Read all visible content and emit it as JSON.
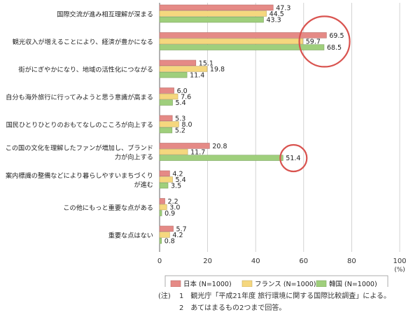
{
  "chart_data": {
    "type": "bar",
    "orientation": "horizontal",
    "categories": [
      [
        "国際交流が進み相互理解が深まる"
      ],
      [
        "観光収入が増えることにより、経済が豊かになる"
      ],
      [
        "街がにぎやかになり、地域の活性化につながる"
      ],
      [
        "自分も海外旅行に行ってみようと思う意識が高まる"
      ],
      [
        "国民ひとりひとりのおもてなしのこころが向上する"
      ],
      [
        "この国の文化を理解したファンが増加し、ブランド",
        "力が向上する"
      ],
      [
        "案内標識の整備などにより暮らしやすいまちづくり",
        "が進む"
      ],
      [
        "この他にもっと重要な点がある"
      ],
      [
        "重要な点はない"
      ]
    ],
    "series": [
      {
        "name": "日本 (N=1000)",
        "color": "#e58a86",
        "values": [
          47.3,
          69.5,
          15.1,
          6.0,
          5.3,
          20.8,
          4.2,
          2.2,
          5.7
        ]
      },
      {
        "name": "フランス (N=1000)",
        "color": "#f5d77e",
        "values": [
          44.5,
          59.7,
          19.8,
          7.6,
          8.0,
          11.7,
          5.4,
          3.0,
          4.2
        ]
      },
      {
        "name": "韓国 (N=1000)",
        "color": "#9fcf7c",
        "values": [
          43.3,
          68.5,
          11.4,
          5.4,
          5.2,
          51.4,
          3.5,
          0.9,
          0.8
        ]
      }
    ],
    "xlim": [
      0,
      100
    ],
    "xticks": [
      0,
      20,
      40,
      60,
      80,
      100
    ],
    "xunit": "(%)",
    "grid": true,
    "legend_position": "bottom",
    "annotations": [
      {
        "type": "circle",
        "around": "観光収入が増えることにより、経済が豊かになる",
        "color": "#d9534f"
      },
      {
        "type": "circle",
        "around": "この国の文化を理解したファンが増加し、ブランド 力が向上する / 韓国",
        "color": "#d9534f"
      }
    ]
  },
  "notes": {
    "label": "(注)",
    "line1": "1　観光庁「平成21年度 旅行環境に関する国際比較調査」による。",
    "line2": "2　あてはまるもの2つまで回答。"
  }
}
